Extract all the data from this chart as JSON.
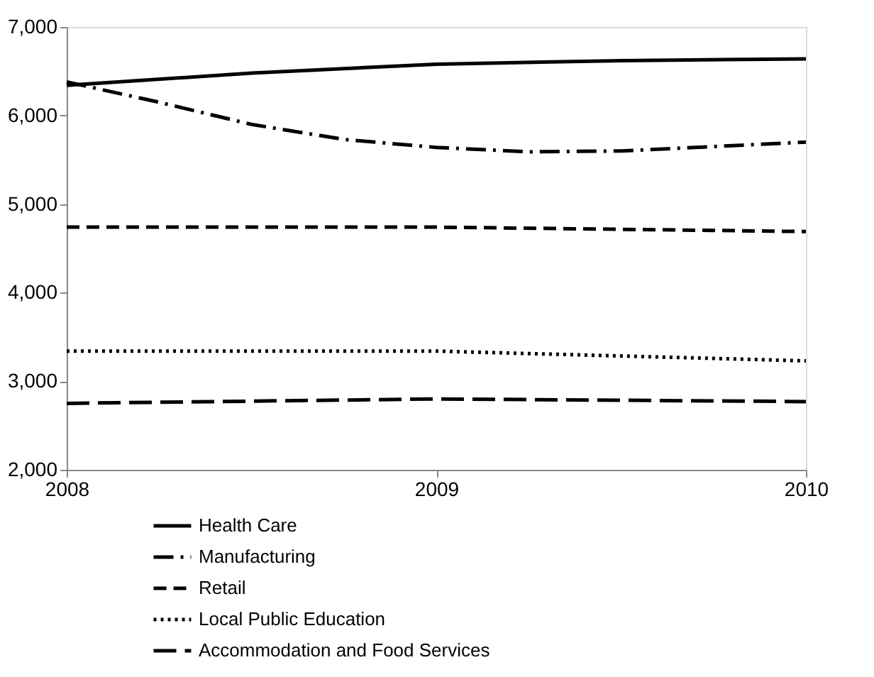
{
  "chart_data": {
    "type": "line",
    "xlim": [
      2008,
      2010
    ],
    "xticks": [
      2008,
      2009,
      2010
    ],
    "ylim": [
      2000,
      7000
    ],
    "yticks": [
      {
        "value": 2000,
        "label": "2,000"
      },
      {
        "value": 3000,
        "label": "3,000"
      },
      {
        "value": 4000,
        "label": "4,000"
      },
      {
        "value": 5000,
        "label": "5,000"
      },
      {
        "value": 6000,
        "label": "6,000"
      },
      {
        "value": 7000,
        "label": "7,000"
      }
    ],
    "grid": false,
    "legend": "bottom",
    "marker": "none",
    "series": [
      {
        "name": "Health Care",
        "color": "#000000",
        "line_style": "solid",
        "x": [
          2008,
          2008.5,
          2009,
          2009.5,
          2010
        ],
        "values": [
          6340,
          6480,
          6580,
          6620,
          6640
        ]
      },
      {
        "name": "Manufacturing",
        "color": "#000000",
        "line_style": "dashdot",
        "x": [
          2008,
          2008.25,
          2008.5,
          2008.75,
          2009,
          2009.25,
          2009.5,
          2009.75,
          2010
        ],
        "values": [
          6380,
          6150,
          5900,
          5730,
          5640,
          5590,
          5600,
          5650,
          5700
        ]
      },
      {
        "name": "Retail",
        "color": "#000000",
        "line_style": "dashed",
        "x": [
          2008,
          2009,
          2010
        ],
        "values": [
          4740,
          4740,
          4690
        ]
      },
      {
        "name": "Local Public Education",
        "color": "#000000",
        "line_style": "dotted",
        "x": [
          2008,
          2009,
          2010
        ],
        "values": [
          3340,
          3340,
          3230
        ]
      },
      {
        "name": "Accommodation and Food Services",
        "color": "#000000",
        "line_style": "longdash",
        "x": [
          2008,
          2009,
          2010
        ],
        "values": [
          2750,
          2800,
          2770
        ]
      }
    ]
  }
}
